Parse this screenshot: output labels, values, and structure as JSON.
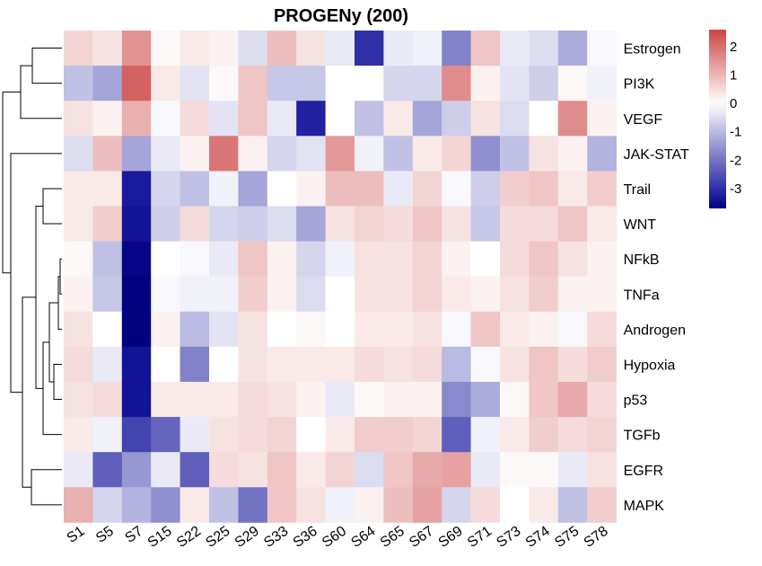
{
  "chart_data": {
    "type": "heatmap",
    "title": "PROGENy (200)",
    "columns": [
      "S1",
      "S5",
      "S7",
      "S15",
      "S22",
      "S25",
      "S29",
      "S33",
      "S36",
      "S60",
      "S64",
      "S65",
      "S67",
      "S69",
      "S71",
      "S73",
      "S74",
      "S75",
      "S78"
    ],
    "rows": [
      "Estrogen",
      "PI3K",
      "VEGF",
      "JAK-STAT",
      "Trail",
      "WNT",
      "NFkB",
      "TNFa",
      "Androgen",
      "Hypoxia",
      "p53",
      "TGFb",
      "EGFR",
      "MAPK"
    ],
    "values": [
      [
        0.6,
        0.4,
        1.5,
        0.1,
        0.3,
        0.2,
        -0.5,
        0.9,
        0.4,
        -0.3,
        -3.0,
        -0.3,
        -0.2,
        -1.8,
        0.8,
        -0.3,
        -0.5,
        -1.2,
        -0.1
      ],
      [
        -0.9,
        -1.3,
        2.2,
        0.3,
        -0.4,
        0.1,
        0.8,
        -0.8,
        -0.8,
        0.0,
        0.0,
        -0.6,
        -0.6,
        1.6,
        0.2,
        -0.4,
        -0.7,
        0.1,
        -0.2
      ],
      [
        0.4,
        0.2,
        1.1,
        -0.1,
        0.5,
        -0.4,
        0.8,
        -0.3,
        -3.2,
        0.0,
        -0.9,
        0.3,
        -1.3,
        -0.7,
        0.4,
        -0.5,
        0.0,
        1.6,
        0.2
      ],
      [
        -0.5,
        0.9,
        -1.3,
        -0.3,
        0.2,
        1.9,
        0.2,
        -0.6,
        -0.4,
        1.4,
        -0.2,
        -0.9,
        0.3,
        0.6,
        -1.6,
        -0.9,
        0.4,
        0.2,
        -1.1
      ],
      [
        0.3,
        0.3,
        -3.3,
        -0.6,
        -0.9,
        -0.2,
        -1.3,
        0.0,
        0.2,
        0.9,
        0.9,
        -0.3,
        0.6,
        -0.1,
        -0.7,
        0.7,
        0.8,
        0.3,
        0.7
      ],
      [
        0.3,
        0.7,
        -3.4,
        -0.7,
        0.5,
        -0.6,
        -0.7,
        -0.5,
        -1.3,
        0.4,
        0.6,
        0.5,
        0.8,
        0.4,
        -0.8,
        0.5,
        0.5,
        0.8,
        0.3
      ],
      [
        0.1,
        -0.9,
        -3.6,
        0.0,
        -0.1,
        -0.3,
        0.8,
        0.2,
        -0.6,
        -0.2,
        0.4,
        0.4,
        0.6,
        0.2,
        0.0,
        0.5,
        0.8,
        0.4,
        0.2
      ],
      [
        0.2,
        -0.8,
        -3.7,
        -0.1,
        -0.2,
        -0.2,
        0.7,
        0.2,
        -0.5,
        0.0,
        0.4,
        0.4,
        0.6,
        0.3,
        0.2,
        0.4,
        0.7,
        0.2,
        0.2
      ],
      [
        0.4,
        0.0,
        -3.7,
        0.2,
        -1.0,
        -0.4,
        0.4,
        0.0,
        0.1,
        0.0,
        0.3,
        0.3,
        0.4,
        -0.1,
        0.8,
        0.3,
        0.2,
        -0.1,
        0.5
      ],
      [
        0.5,
        -0.3,
        -3.4,
        0.0,
        -1.8,
        0.0,
        0.4,
        0.3,
        0.3,
        0.3,
        0.5,
        0.4,
        0.5,
        -1.0,
        -0.1,
        0.4,
        0.8,
        0.5,
        0.7
      ],
      [
        0.4,
        0.5,
        -3.4,
        0.3,
        0.3,
        0.3,
        0.5,
        0.4,
        0.2,
        -0.3,
        0.1,
        0.2,
        0.2,
        -1.7,
        -1.2,
        0.1,
        0.8,
        1.2,
        0.5
      ],
      [
        0.3,
        -0.2,
        -2.7,
        -2.2,
        -0.3,
        0.4,
        0.5,
        0.6,
        0.0,
        0.3,
        0.7,
        0.7,
        0.6,
        -2.3,
        -0.2,
        0.3,
        0.7,
        0.5,
        0.6
      ],
      [
        -0.3,
        -2.3,
        -1.5,
        -0.3,
        -2.3,
        0.5,
        0.4,
        0.8,
        0.3,
        0.6,
        -0.5,
        0.8,
        1.2,
        1.3,
        -0.3,
        0.1,
        0.1,
        -0.3,
        0.4
      ],
      [
        1.1,
        -0.6,
        -1.1,
        -1.6,
        0.3,
        -0.9,
        -2.0,
        0.8,
        0.4,
        -0.2,
        0.2,
        0.9,
        1.3,
        -0.6,
        0.5,
        0.0,
        0.3,
        -0.9,
        0.7
      ]
    ],
    "legend": {
      "ticks": [
        2,
        1,
        0,
        -1,
        -2,
        -3
      ],
      "min": -3.7,
      "max": 2.6
    },
    "colors": {
      "low": "#1a1a9e",
      "mid": "#ffffff",
      "high": "#cc4444",
      "extreme_low": "#000080"
    },
    "dendrogram": "rows"
  }
}
